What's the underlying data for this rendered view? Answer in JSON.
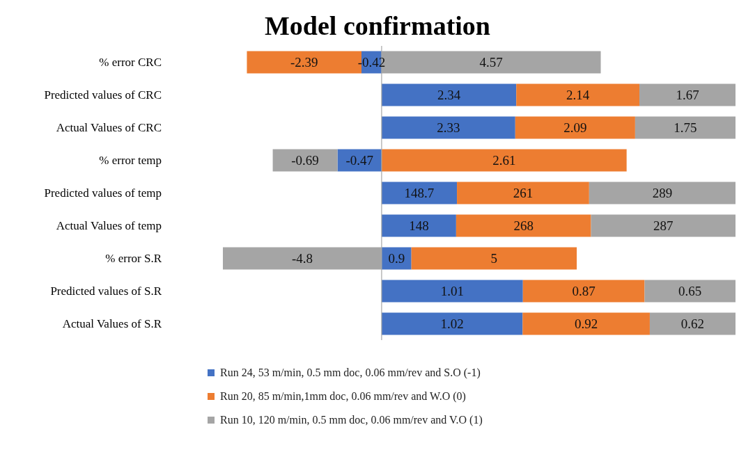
{
  "chart_data": [
    {
      "type": "bar",
      "title": "Model confirmation",
      "orientation": "horizontal",
      "stacked": true,
      "data_labels": true,
      "tick_labels": "y",
      "categories": [
        "% error CRC"
      ],
      "ref_lines": [
        {
          "axis": "x",
          "value": 0,
          "color": "#a6a6a6"
        }
      ],
      "series": [
        {
          "color": "#4472c4",
          "values": [
            -0.42
          ]
        },
        {
          "color": "#ed7d31",
          "values": [
            -2.39
          ]
        },
        {
          "color": "#a5a5a5",
          "values": [
            4.57
          ]
        }
      ]
    },
    {
      "type": "bar",
      "orientation": "horizontal",
      "stacked": true,
      "data_labels": true,
      "tick_labels": "y",
      "categories": [
        "Predicted values of CRC"
      ],
      "ref_lines": [
        {
          "axis": "x",
          "value": 0,
          "color": "#a6a6a6"
        }
      ],
      "series": [
        {
          "color": "#4472c4",
          "values": [
            2.34
          ]
        },
        {
          "color": "#ed7d31",
          "values": [
            2.14
          ]
        },
        {
          "color": "#a5a5a5",
          "values": [
            1.67
          ]
        }
      ]
    },
    {
      "type": "bar",
      "orientation": "horizontal",
      "stacked": true,
      "data_labels": true,
      "tick_labels": "y",
      "categories": [
        "Actual Values of CRC"
      ],
      "ref_lines": [
        {
          "axis": "x",
          "value": 0,
          "color": "#a6a6a6"
        }
      ],
      "series": [
        {
          "color": "#4472c4",
          "values": [
            2.33
          ]
        },
        {
          "color": "#ed7d31",
          "values": [
            2.09
          ]
        },
        {
          "color": "#a5a5a5",
          "values": [
            1.75
          ]
        }
      ]
    },
    {
      "type": "bar",
      "orientation": "horizontal",
      "stacked": true,
      "data_labels": true,
      "tick_labels": "y",
      "categories": [
        "% error temp"
      ],
      "ref_lines": [
        {
          "axis": "x",
          "value": 0,
          "color": "#a6a6a6"
        }
      ],
      "series": [
        {
          "color": "#4472c4",
          "values": [
            -0.47
          ]
        },
        {
          "color": "#ed7d31",
          "values": [
            2.61
          ]
        },
        {
          "color": "#a5a5a5",
          "values": [
            -0.69
          ]
        }
      ]
    },
    {
      "type": "bar",
      "orientation": "horizontal",
      "stacked": true,
      "data_labels": true,
      "tick_labels": "y",
      "categories": [
        "Predicted values of temp"
      ],
      "ref_lines": [
        {
          "axis": "x",
          "value": 0,
          "color": "#a6a6a6"
        }
      ],
      "series": [
        {
          "color": "#4472c4",
          "values": [
            148.7
          ]
        },
        {
          "color": "#ed7d31",
          "values": [
            261
          ]
        },
        {
          "color": "#a5a5a5",
          "values": [
            289
          ]
        }
      ]
    },
    {
      "type": "bar",
      "orientation": "horizontal",
      "stacked": true,
      "data_labels": true,
      "tick_labels": "y",
      "categories": [
        "Actual Values of temp"
      ],
      "ref_lines": [
        {
          "axis": "x",
          "value": 0,
          "color": "#a6a6a6"
        }
      ],
      "series": [
        {
          "color": "#4472c4",
          "values": [
            148
          ]
        },
        {
          "color": "#ed7d31",
          "values": [
            268
          ]
        },
        {
          "color": "#a5a5a5",
          "values": [
            287
          ]
        }
      ]
    },
    {
      "type": "bar",
      "orientation": "horizontal",
      "stacked": true,
      "data_labels": true,
      "tick_labels": "y",
      "categories": [
        "% error S.R"
      ],
      "ref_lines": [
        {
          "axis": "x",
          "value": 0,
          "color": "#a6a6a6"
        }
      ],
      "series": [
        {
          "color": "#4472c4",
          "values": [
            0.9
          ]
        },
        {
          "color": "#ed7d31",
          "values": [
            5
          ]
        },
        {
          "color": "#a5a5a5",
          "values": [
            -4.8
          ]
        }
      ]
    },
    {
      "type": "bar",
      "orientation": "horizontal",
      "stacked": true,
      "data_labels": true,
      "tick_labels": "y",
      "categories": [
        "Predicted values of S.R"
      ],
      "ref_lines": [
        {
          "axis": "x",
          "value": 0,
          "color": "#a6a6a6"
        }
      ],
      "series": [
        {
          "color": "#4472c4",
          "values": [
            1.01
          ]
        },
        {
          "color": "#ed7d31",
          "values": [
            0.87
          ]
        },
        {
          "color": "#a5a5a5",
          "values": [
            0.65
          ]
        }
      ]
    },
    {
      "type": "bar",
      "orientation": "horizontal",
      "stacked": true,
      "data_labels": true,
      "tick_labels": "y",
      "categories": [
        "Actual Values of S.R"
      ],
      "ref_lines": [
        {
          "axis": "x",
          "value": 0,
          "color": "#a6a6a6"
        }
      ],
      "legend": "bottom",
      "series": [
        {
          "name": "Run 24, 53 m/min, 0.5 mm doc, 0.06 mm/rev and S.O (-1)",
          "color": "#4472c4",
          "values": [
            1.02
          ]
        },
        {
          "name": "Run 20, 85 m/min,1mm doc, 0.06 mm/rev and W.O (0)",
          "color": "#ed7d31",
          "values": [
            0.92
          ]
        },
        {
          "name": "Run 10, 120 m/min, 0.5 mm doc, 0.06 mm/rev and V.O (1)",
          "color": "#a5a5a5",
          "values": [
            0.62
          ]
        }
      ]
    }
  ]
}
